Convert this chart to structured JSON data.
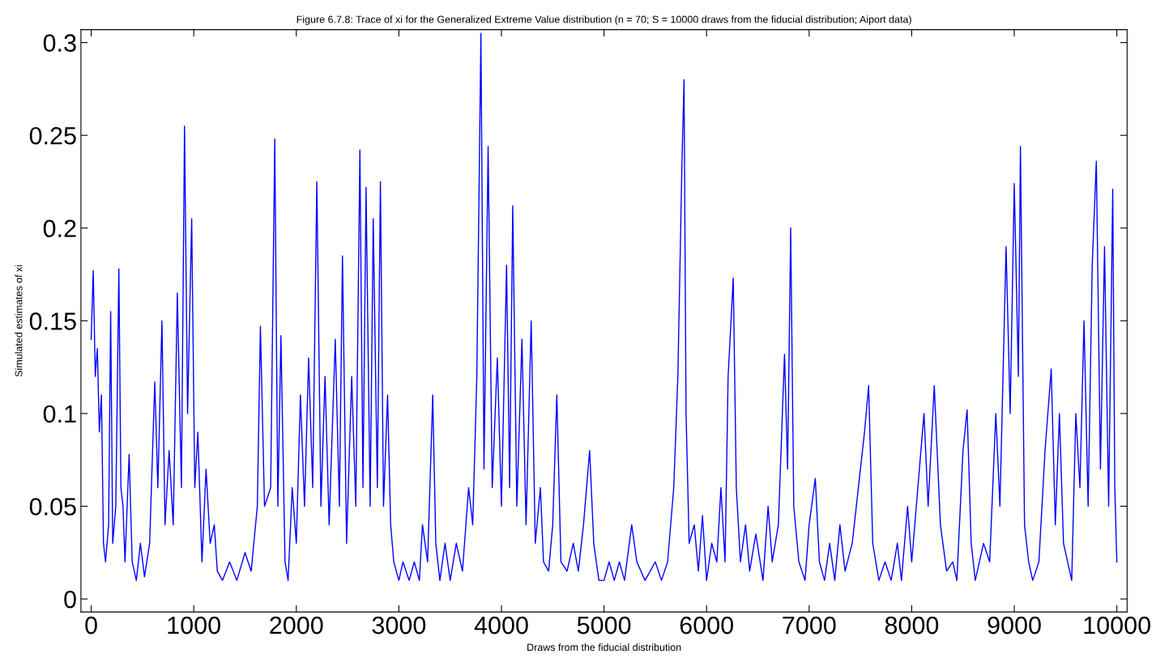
{
  "chart_data": {
    "type": "line",
    "title": "Figure 6.7.8: Trace of xi for the Generalized Extreme Value distribution (n = 70; S = 10000 draws from the fiducial distribution; Aiport data)",
    "xlabel": "Draws from the fiducial distribution",
    "ylabel": "Simulated estimates of xi",
    "xlim": [
      -100,
      10100
    ],
    "ylim": [
      -0.007,
      0.307
    ],
    "xticks": [
      0,
      1000,
      2000,
      3000,
      4000,
      5000,
      6000,
      7000,
      8000,
      9000,
      10000
    ],
    "yticks": [
      0,
      0.05,
      0.1,
      0.15,
      0.2,
      0.25,
      0.3
    ],
    "grid": false,
    "marker": "none",
    "line_style": "solid",
    "series": [
      {
        "color": "#0000ff",
        "x": [
          0,
          20,
          40,
          60,
          80,
          100,
          120,
          140,
          170,
          190,
          210,
          240,
          270,
          290,
          310,
          330,
          370,
          400,
          440,
          480,
          520,
          570,
          620,
          650,
          690,
          720,
          760,
          800,
          840,
          880,
          910,
          940,
          980,
          1010,
          1040,
          1080,
          1120,
          1160,
          1200,
          1230,
          1280,
          1350,
          1420,
          1500,
          1560,
          1620,
          1650,
          1690,
          1750,
          1790,
          1820,
          1850,
          1890,
          1920,
          1960,
          2000,
          2040,
          2080,
          2120,
          2160,
          2200,
          2240,
          2280,
          2320,
          2380,
          2420,
          2450,
          2490,
          2540,
          2580,
          2620,
          2650,
          2680,
          2720,
          2750,
          2790,
          2820,
          2850,
          2890,
          2920,
          2950,
          3000,
          3040,
          3100,
          3150,
          3200,
          3230,
          3280,
          3330,
          3360,
          3400,
          3450,
          3500,
          3560,
          3620,
          3680,
          3720,
          3760,
          3800,
          3830,
          3870,
          3910,
          3960,
          4000,
          4050,
          4080,
          4110,
          4150,
          4200,
          4240,
          4290,
          4330,
          4380,
          4410,
          4460,
          4500,
          4540,
          4580,
          4640,
          4700,
          4750,
          4800,
          4860,
          4900,
          4950,
          5000,
          5050,
          5100,
          5150,
          5200,
          5270,
          5320,
          5400,
          5500,
          5560,
          5620,
          5680,
          5720,
          5760,
          5780,
          5800,
          5830,
          5880,
          5920,
          5960,
          6000,
          6050,
          6100,
          6140,
          6180,
          6210,
          6260,
          6290,
          6330,
          6380,
          6420,
          6480,
          6550,
          6600,
          6640,
          6700,
          6760,
          6790,
          6820,
          6850,
          6900,
          6960,
          7000,
          7060,
          7100,
          7150,
          7200,
          7250,
          7300,
          7350,
          7420,
          7480,
          7540,
          7580,
          7620,
          7680,
          7740,
          7800,
          7860,
          7900,
          7960,
          8000,
          8060,
          8120,
          8160,
          8220,
          8280,
          8340,
          8400,
          8440,
          8500,
          8540,
          8580,
          8620,
          8700,
          8760,
          8820,
          8860,
          8920,
          8960,
          9000,
          9040,
          9060,
          9100,
          9140,
          9180,
          9240,
          9300,
          9360,
          9400,
          9440,
          9480,
          9520,
          9560,
          9600,
          9640,
          9680,
          9720,
          9760,
          9800,
          9840,
          9880,
          9920,
          9960,
          9980,
          10000
        ],
        "values": [
          0.14,
          0.177,
          0.12,
          0.135,
          0.09,
          0.11,
          0.03,
          0.02,
          0.04,
          0.155,
          0.03,
          0.05,
          0.178,
          0.06,
          0.05,
          0.02,
          0.078,
          0.02,
          0.01,
          0.03,
          0.012,
          0.03,
          0.117,
          0.06,
          0.15,
          0.04,
          0.08,
          0.04,
          0.165,
          0.06,
          0.255,
          0.1,
          0.205,
          0.06,
          0.09,
          0.02,
          0.07,
          0.03,
          0.04,
          0.015,
          0.01,
          0.02,
          0.01,
          0.025,
          0.015,
          0.05,
          0.147,
          0.05,
          0.06,
          0.248,
          0.05,
          0.142,
          0.02,
          0.01,
          0.06,
          0.03,
          0.11,
          0.05,
          0.13,
          0.06,
          0.225,
          0.05,
          0.12,
          0.04,
          0.14,
          0.05,
          0.185,
          0.03,
          0.12,
          0.05,
          0.242,
          0.06,
          0.222,
          0.05,
          0.205,
          0.06,
          0.225,
          0.05,
          0.11,
          0.04,
          0.02,
          0.01,
          0.02,
          0.01,
          0.02,
          0.01,
          0.04,
          0.02,
          0.11,
          0.03,
          0.01,
          0.03,
          0.01,
          0.03,
          0.015,
          0.06,
          0.04,
          0.12,
          0.305,
          0.07,
          0.244,
          0.06,
          0.13,
          0.05,
          0.18,
          0.06,
          0.212,
          0.05,
          0.14,
          0.04,
          0.15,
          0.03,
          0.06,
          0.02,
          0.015,
          0.04,
          0.11,
          0.02,
          0.015,
          0.03,
          0.015,
          0.04,
          0.08,
          0.03,
          0.01,
          0.01,
          0.02,
          0.01,
          0.02,
          0.01,
          0.04,
          0.02,
          0.01,
          0.02,
          0.01,
          0.02,
          0.06,
          0.12,
          0.235,
          0.28,
          0.1,
          0.03,
          0.04,
          0.015,
          0.045,
          0.01,
          0.03,
          0.02,
          0.06,
          0.02,
          0.12,
          0.173,
          0.06,
          0.02,
          0.04,
          0.015,
          0.035,
          0.01,
          0.05,
          0.02,
          0.04,
          0.132,
          0.07,
          0.2,
          0.05,
          0.02,
          0.01,
          0.04,
          0.065,
          0.02,
          0.01,
          0.03,
          0.01,
          0.04,
          0.015,
          0.03,
          0.06,
          0.09,
          0.115,
          0.03,
          0.01,
          0.02,
          0.01,
          0.03,
          0.01,
          0.05,
          0.02,
          0.06,
          0.1,
          0.05,
          0.115,
          0.04,
          0.015,
          0.02,
          0.01,
          0.08,
          0.102,
          0.03,
          0.01,
          0.03,
          0.02,
          0.1,
          0.05,
          0.19,
          0.1,
          0.224,
          0.12,
          0.244,
          0.04,
          0.02,
          0.01,
          0.02,
          0.08,
          0.124,
          0.04,
          0.1,
          0.03,
          0.02,
          0.01,
          0.1,
          0.06,
          0.15,
          0.05,
          0.18,
          0.236,
          0.07,
          0.19,
          0.05,
          0.221,
          0.06,
          0.02
        ]
      }
    ]
  }
}
